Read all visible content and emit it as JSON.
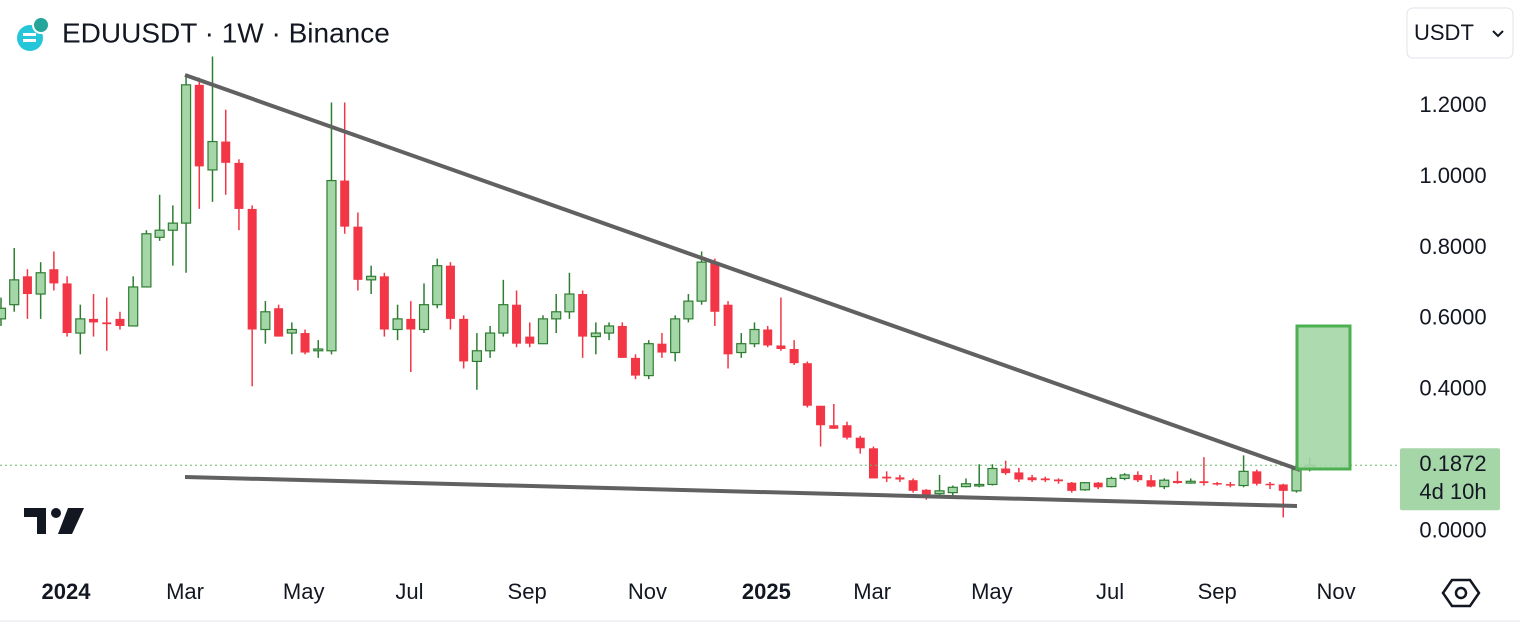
{
  "chart_data": {
    "type": "candlestick",
    "title": "EDUUSDT · 1W · Binance",
    "currency": "USDT",
    "last_price": 0.1872,
    "countdown": "4d 10h",
    "up_color": "#a5d6a7",
    "up_border": "#2e7d32",
    "down_color": "#f23645",
    "x": [
      0,
      1,
      2,
      3,
      4,
      5,
      6,
      7,
      8,
      9,
      10,
      11,
      12,
      13,
      14,
      15,
      16,
      17,
      18,
      19,
      20,
      21,
      22,
      23,
      24,
      25,
      26,
      27,
      28,
      29,
      30,
      31,
      32,
      33,
      34,
      35,
      36,
      37,
      38,
      39,
      40,
      41,
      42,
      43,
      44,
      45,
      46,
      47,
      48,
      49,
      50,
      51,
      52,
      53,
      54,
      55,
      56,
      57,
      58,
      59,
      60,
      61,
      62,
      63,
      64,
      65,
      66,
      67,
      68,
      69,
      70,
      71,
      72,
      73,
      74,
      75,
      76,
      77,
      78,
      79,
      80,
      81,
      82,
      83,
      84,
      85,
      86,
      87,
      88,
      89,
      90,
      91,
      92,
      93,
      94,
      95,
      96,
      97,
      98,
      99
    ],
    "open": [
      0.6,
      0.64,
      0.72,
      0.67,
      0.74,
      0.7,
      0.56,
      0.6,
      0.59,
      0.6,
      0.58,
      0.69,
      0.83,
      0.85,
      0.87,
      1.26,
      1.02,
      1.1,
      1.04,
      0.91,
      0.57,
      0.63,
      0.56,
      0.56,
      0.51,
      0.51,
      0.99,
      0.86,
      0.71,
      0.72,
      0.57,
      0.6,
      0.57,
      0.64,
      0.75,
      0.6,
      0.48,
      0.51,
      0.56,
      0.64,
      0.55,
      0.53,
      0.6,
      0.62,
      0.67,
      0.55,
      0.56,
      0.58,
      0.49,
      0.44,
      0.53,
      0.505,
      0.6,
      0.65,
      0.76,
      0.64,
      0.505,
      0.53,
      0.57,
      0.525,
      0.515,
      0.475,
      0.355,
      0.3,
      0.3,
      0.265,
      0.235,
      0.155,
      0.153,
      0.145,
      0.118,
      0.107,
      0.11,
      0.127,
      0.13,
      0.133,
      0.178,
      0.167,
      0.153,
      0.15,
      0.147,
      0.138,
      0.118,
      0.138,
      0.127,
      0.15,
      0.16,
      0.145,
      0.127,
      0.143,
      0.137,
      0.142,
      0.137,
      0.134,
      0.13,
      0.17,
      0.135,
      0.133,
      0.115,
      0.175
    ],
    "high": [
      0.66,
      0.8,
      0.74,
      0.76,
      0.79,
      0.72,
      0.64,
      0.67,
      0.66,
      0.62,
      0.72,
      0.85,
      0.95,
      0.92,
      1.29,
      1.28,
      1.34,
      1.19,
      1.05,
      0.92,
      0.65,
      0.64,
      0.59,
      0.57,
      0.54,
      1.21,
      1.21,
      0.9,
      0.75,
      0.73,
      0.64,
      0.65,
      0.7,
      0.77,
      0.76,
      0.61,
      0.56,
      0.58,
      0.71,
      0.68,
      0.59,
      0.61,
      0.67,
      0.73,
      0.68,
      0.59,
      0.59,
      0.59,
      0.5,
      0.54,
      0.56,
      0.61,
      0.67,
      0.79,
      0.77,
      0.65,
      0.56,
      0.59,
      0.58,
      0.66,
      0.54,
      0.48,
      0.355,
      0.36,
      0.31,
      0.27,
      0.24,
      0.17,
      0.16,
      0.15,
      0.12,
      0.16,
      0.13,
      0.15,
      0.19,
      0.19,
      0.2,
      0.18,
      0.16,
      0.155,
      0.15,
      0.14,
      0.14,
      0.14,
      0.155,
      0.165,
      0.17,
      0.16,
      0.15,
      0.17,
      0.15,
      0.21,
      0.14,
      0.14,
      0.215,
      0.175,
      0.14,
      0.135,
      0.18,
      0.21
    ],
    "low": [
      0.58,
      0.62,
      0.6,
      0.6,
      0.68,
      0.55,
      0.5,
      0.55,
      0.51,
      0.57,
      0.58,
      0.69,
      0.82,
      0.75,
      0.73,
      0.91,
      0.93,
      0.95,
      0.85,
      0.41,
      0.53,
      0.55,
      0.5,
      0.5,
      0.49,
      0.5,
      0.84,
      0.68,
      0.67,
      0.55,
      0.54,
      0.45,
      0.56,
      0.63,
      0.57,
      0.46,
      0.4,
      0.49,
      0.55,
      0.52,
      0.52,
      0.53,
      0.56,
      0.6,
      0.49,
      0.5,
      0.54,
      0.49,
      0.43,
      0.43,
      0.49,
      0.48,
      0.59,
      0.64,
      0.58,
      0.46,
      0.49,
      0.52,
      0.52,
      0.51,
      0.47,
      0.35,
      0.24,
      0.29,
      0.26,
      0.22,
      0.15,
      0.14,
      0.14,
      0.11,
      0.09,
      0.1,
      0.1,
      0.125,
      0.125,
      0.13,
      0.16,
      0.14,
      0.14,
      0.14,
      0.135,
      0.11,
      0.115,
      0.12,
      0.125,
      0.145,
      0.14,
      0.125,
      0.12,
      0.135,
      0.135,
      0.13,
      0.13,
      0.125,
      0.125,
      0.13,
      0.12,
      0.04,
      0.11,
      0.17
    ],
    "close": [
      0.63,
      0.71,
      0.67,
      0.73,
      0.7,
      0.56,
      0.6,
      0.59,
      0.585,
      0.58,
      0.69,
      0.84,
      0.85,
      0.87,
      1.26,
      1.03,
      1.1,
      1.04,
      0.91,
      0.57,
      0.62,
      0.55,
      0.57,
      0.505,
      0.515,
      0.99,
      0.86,
      0.71,
      0.72,
      0.57,
      0.6,
      0.57,
      0.64,
      0.75,
      0.6,
      0.48,
      0.51,
      0.56,
      0.64,
      0.53,
      0.53,
      0.6,
      0.62,
      0.67,
      0.55,
      0.56,
      0.58,
      0.49,
      0.44,
      0.53,
      0.505,
      0.6,
      0.65,
      0.76,
      0.62,
      0.5,
      0.53,
      0.57,
      0.525,
      0.515,
      0.475,
      0.355,
      0.3,
      0.29,
      0.265,
      0.235,
      0.15,
      0.15,
      0.147,
      0.115,
      0.1,
      0.115,
      0.125,
      0.135,
      0.133,
      0.178,
      0.165,
      0.147,
      0.145,
      0.145,
      0.142,
      0.115,
      0.138,
      0.125,
      0.15,
      0.16,
      0.145,
      0.127,
      0.145,
      0.137,
      0.142,
      0.137,
      0.134,
      0.13,
      0.17,
      0.135,
      0.132,
      0.115,
      0.175,
      0.1872
    ],
    "xlim": [
      0,
      105
    ],
    "xticks": [
      {
        "value": 4.92,
        "label": "2024"
      },
      {
        "value": 13.92,
        "label": "Mar"
      },
      {
        "value": 22.9,
        "label": "May"
      },
      {
        "value": 30.9,
        "label": "Jul"
      },
      {
        "value": 39.8,
        "label": "Sep"
      },
      {
        "value": 48.9,
        "label": "Nov"
      },
      {
        "value": 57.9,
        "label": "2025"
      },
      {
        "value": 65.9,
        "label": "Mar"
      },
      {
        "value": 74.96,
        "label": "May"
      },
      {
        "value": 83.9,
        "label": "Jul"
      },
      {
        "value": 92,
        "label": "Sep"
      },
      {
        "value": 101,
        "label": "Nov"
      }
    ],
    "ylim": [
      -0.08,
      1.33
    ],
    "yticks": [
      {
        "value": 0,
        "label": "0.0000"
      },
      {
        "value": 0.4,
        "label": "0.4000"
      },
      {
        "value": 0.6,
        "label": "0.6000"
      },
      {
        "value": 0.8,
        "label": "0.8000"
      },
      {
        "value": 1,
        "label": "1.0000"
      },
      {
        "value": 1.2,
        "label": "1.2000"
      }
    ]
  }
}
